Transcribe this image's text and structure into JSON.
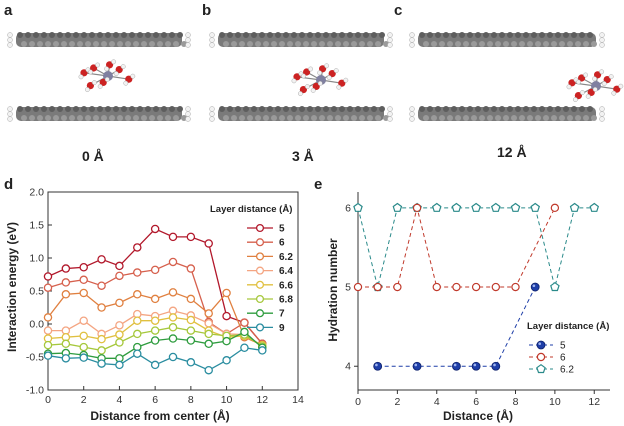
{
  "panels": {
    "a": {
      "letter": "a",
      "caption": "0 Å"
    },
    "b": {
      "letter": "b",
      "caption": "3 Å"
    },
    "c": {
      "letter": "c",
      "caption": "12 Å"
    },
    "d": {
      "letter": "d"
    },
    "e": {
      "letter": "e"
    }
  },
  "colors": {
    "carbon": "#7a7a7a",
    "hydrogen": "#f2f2f2",
    "oxygen": "#cc2222",
    "ion": "#8080a0"
  },
  "chart_data": [
    {
      "type": "line",
      "xlabel": "Distance from center (Å)",
      "ylabel": "Interaction energy (eV)",
      "xlim": [
        0,
        14
      ],
      "ylim": [
        -1.0,
        2.0
      ],
      "xticks": [
        "0",
        "2",
        "4",
        "6",
        "8",
        "10",
        "12",
        "14"
      ],
      "yticks": [
        "-1.0",
        "-0.5",
        "0.0",
        "0.5",
        "1.0",
        "1.5",
        "2.0"
      ],
      "legend_title": "Layer distance (Å)",
      "legend_position": "right",
      "x": [
        0,
        1,
        2,
        3,
        4,
        5,
        6,
        7,
        8,
        9,
        10,
        11,
        12
      ],
      "series": [
        {
          "name": "5",
          "color": "#b2182b",
          "values": [
            0.72,
            0.84,
            0.86,
            0.98,
            0.88,
            1.16,
            1.44,
            1.32,
            1.32,
            1.22,
            0.12,
            0.02,
            -0.3
          ]
        },
        {
          "name": "6",
          "color": "#d6604d",
          "values": [
            0.55,
            0.63,
            0.67,
            0.58,
            0.73,
            0.78,
            0.82,
            0.94,
            0.84,
            0.03,
            -0.15,
            0.02,
            -0.3
          ]
        },
        {
          "name": "6.2",
          "color": "#e08040",
          "values": [
            0.1,
            0.45,
            0.47,
            0.25,
            0.32,
            0.45,
            0.38,
            0.48,
            0.38,
            0.16,
            0.47,
            -0.2,
            -0.32
          ]
        },
        {
          "name": "6.4",
          "color": "#f4a582",
          "values": [
            -0.1,
            -0.1,
            0.05,
            -0.15,
            -0.02,
            0.15,
            0.12,
            0.2,
            0.13,
            0.01,
            -0.15,
            -0.16,
            -0.34
          ]
        },
        {
          "name": "6.6",
          "color": "#e0c040",
          "values": [
            -0.22,
            -0.2,
            -0.18,
            -0.23,
            -0.16,
            0.05,
            0.05,
            0.1,
            0.06,
            -0.1,
            -0.2,
            -0.18,
            -0.32
          ]
        },
        {
          "name": "6.8",
          "color": "#a6c83c",
          "values": [
            -0.32,
            -0.3,
            -0.35,
            -0.4,
            -0.28,
            -0.15,
            -0.1,
            -0.05,
            -0.1,
            -0.15,
            -0.18,
            -0.16,
            -0.34
          ]
        },
        {
          "name": "7",
          "color": "#2e9c3e",
          "values": [
            -0.45,
            -0.44,
            -0.47,
            -0.52,
            -0.52,
            -0.35,
            -0.25,
            -0.22,
            -0.25,
            -0.3,
            -0.26,
            -0.12,
            -0.36
          ]
        },
        {
          "name": "9",
          "color": "#2a8da0",
          "values": [
            -0.48,
            -0.52,
            -0.51,
            -0.6,
            -0.62,
            -0.45,
            -0.62,
            -0.5,
            -0.58,
            -0.7,
            -0.55,
            -0.36,
            -0.4
          ]
        }
      ]
    },
    {
      "type": "line",
      "xlabel": "Distance (Å)",
      "ylabel": "Hydration number",
      "xlim": [
        0,
        12.8
      ],
      "ylim": [
        3.7,
        6.2
      ],
      "xticks": [
        "0",
        "2",
        "4",
        "6",
        "8",
        "10",
        "12"
      ],
      "yticks": [
        "4",
        "5",
        "6"
      ],
      "legend_title": "Layer distance (Å)",
      "legend_position": "bottom-right",
      "x": [
        0,
        1,
        2,
        3,
        4,
        5,
        6,
        7,
        8,
        9,
        10,
        11,
        12
      ],
      "series": [
        {
          "name": "5",
          "color": "#1f3fa8",
          "marker": "ball",
          "x": [
            1,
            3,
            5,
            6,
            7,
            9
          ],
          "values": [
            4,
            4,
            4,
            4,
            4,
            5
          ]
        },
        {
          "name": "6",
          "color": "#c0392b",
          "marker": "circle",
          "x": [
            0,
            1,
            2,
            3,
            4,
            5,
            6,
            7,
            8,
            10
          ],
          "values": [
            5,
            5,
            5,
            6,
            5,
            5,
            5,
            5,
            5,
            6
          ]
        },
        {
          "name": "6.2",
          "color": "#2a8a8a",
          "marker": "pentagon",
          "x": [
            0,
            1,
            2,
            3,
            4,
            5,
            6,
            7,
            8,
            9,
            10,
            11,
            12
          ],
          "values": [
            6,
            5,
            6,
            6,
            6,
            6,
            6,
            6,
            6,
            6,
            5,
            6,
            6
          ]
        }
      ]
    }
  ]
}
